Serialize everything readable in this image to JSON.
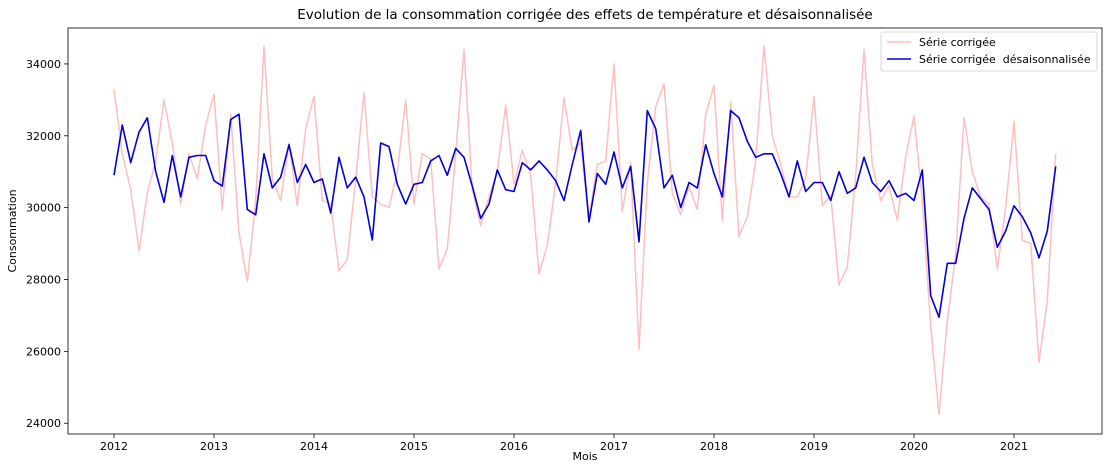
{
  "chart_data": {
    "type": "line",
    "title": "Evolution de la consommation corrigée des effets de température et désaisonnalisée",
    "xlabel": "Mois",
    "ylabel": "Consommation",
    "x_start": "2012-01",
    "x_frequency": "monthly",
    "xlim": [
      2011.54,
      2021.88
    ],
    "ylim": [
      23700,
      35000
    ],
    "x_ticks": [
      {
        "value": 2012,
        "label": "2012"
      },
      {
        "value": 2013,
        "label": "2013"
      },
      {
        "value": 2014,
        "label": "2014"
      },
      {
        "value": 2015,
        "label": "2015"
      },
      {
        "value": 2016,
        "label": "2016"
      },
      {
        "value": 2017,
        "label": "2017"
      },
      {
        "value": 2018,
        "label": "2018"
      },
      {
        "value": 2019,
        "label": "2019"
      },
      {
        "value": 2020,
        "label": "2020"
      },
      {
        "value": 2021,
        "label": "2021"
      }
    ],
    "y_ticks": [
      {
        "value": 24000,
        "label": "24000"
      },
      {
        "value": 26000,
        "label": "26000"
      },
      {
        "value": 28000,
        "label": "28000"
      },
      {
        "value": 30000,
        "label": "30000"
      },
      {
        "value": 32000,
        "label": "32000"
      },
      {
        "value": 34000,
        "label": "34000"
      }
    ],
    "legend_position": "top-right",
    "grid": false,
    "series": [
      {
        "name": "Série corrigée",
        "color": "#ffbfbf",
        "values": [
          33300,
          31500,
          30500,
          28800,
          30400,
          31300,
          33000,
          31800,
          30100,
          31500,
          30800,
          32300,
          33150,
          29950,
          32600,
          29300,
          27950,
          30200,
          34500,
          30800,
          30200,
          31800,
          30050,
          32200,
          33100,
          30200,
          30100,
          28250,
          28550,
          30800,
          33200,
          30300,
          30100,
          30000,
          31000,
          33000,
          30100,
          31500,
          31350,
          28300,
          28850,
          31500,
          34400,
          30500,
          29500,
          30300,
          31000,
          32850,
          30650,
          31600,
          30900,
          28150,
          28950,
          30700,
          33050,
          31600,
          31800,
          29700,
          31200,
          31300,
          34000,
          29900,
          31250,
          26050,
          30700,
          32800,
          33450,
          30400,
          29800,
          30600,
          29950,
          32600,
          33400,
          29650,
          32950,
          29200,
          29750,
          31300,
          34500,
          32000,
          31200,
          30300,
          30300,
          30800,
          33100,
          30050,
          30350,
          27850,
          28350,
          30900,
          34400,
          31200,
          30200,
          30600,
          29650,
          31400,
          32550,
          30200,
          26700,
          24250,
          26850,
          28700,
          32500,
          31000,
          30300,
          30100,
          28300,
          30000,
          32400,
          29100,
          29000,
          25700,
          27400,
          31500
        ]
      },
      {
        "name": "Série corrigée  désaisonnalisée",
        "color": "#0000dd",
        "values": [
          30900,
          32300,
          31250,
          32100,
          32500,
          31000,
          30150,
          31450,
          30300,
          31400,
          31450,
          31450,
          30750,
          30600,
          32450,
          32600,
          29950,
          29800,
          31500,
          30550,
          30850,
          31750,
          30700,
          31200,
          30700,
          30800,
          29850,
          31400,
          30550,
          30850,
          30300,
          29100,
          31800,
          31700,
          30650,
          30100,
          30650,
          30700,
          31300,
          31450,
          30900,
          31650,
          31400,
          30600,
          29700,
          30100,
          31050,
          30500,
          30450,
          31250,
          31050,
          31300,
          31050,
          30750,
          30200,
          31200,
          32150,
          29600,
          30950,
          30650,
          31550,
          30550,
          31150,
          29050,
          32700,
          32200,
          30550,
          30900,
          30000,
          30700,
          30550,
          31750,
          30950,
          30300,
          32700,
          32500,
          31850,
          31400,
          31500,
          31500,
          30950,
          30300,
          31300,
          30450,
          30700,
          30700,
          30200,
          31000,
          30400,
          30550,
          31400,
          30700,
          30450,
          30750,
          30300,
          30400,
          30200,
          31050,
          27550,
          26950,
          28450,
          28450,
          29700,
          30550,
          30250,
          29950,
          28900,
          29350,
          30050,
          29750,
          29300,
          28600,
          29350,
          31150
        ]
      }
    ]
  }
}
